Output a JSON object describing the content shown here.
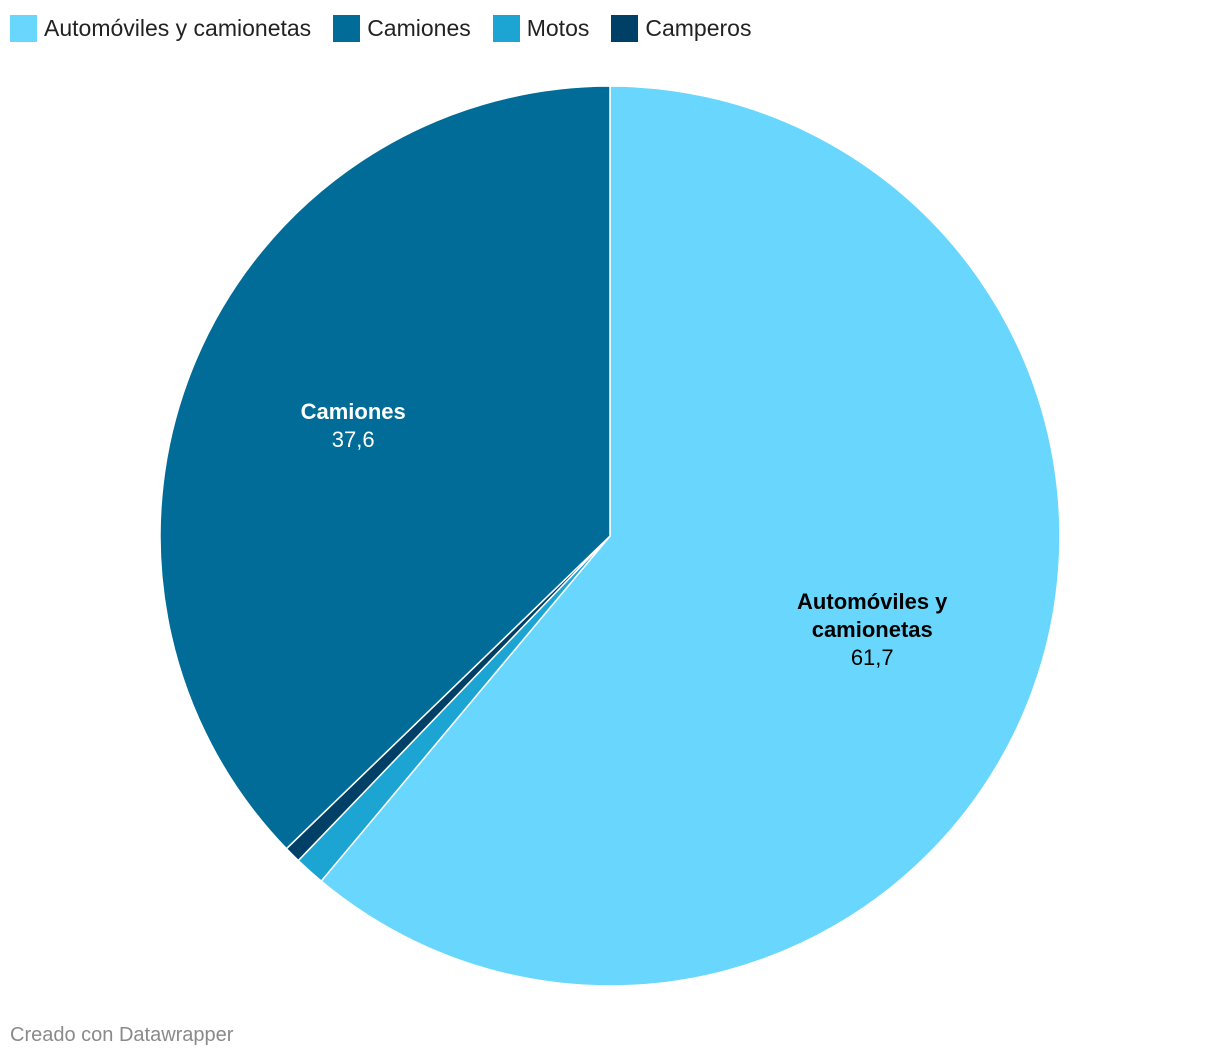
{
  "chart_data": {
    "type": "pie",
    "title": "",
    "slices": [
      {
        "label": "Automóviles y camionetas",
        "label_lines": [
          "Automóviles y",
          "camionetas"
        ],
        "value": 61.7,
        "value_label": "61,7",
        "color": "#69d7fd",
        "text_color": "#000000",
        "show_label": true
      },
      {
        "label": "Motos",
        "label_lines": [
          "Motos"
        ],
        "value": 1.1,
        "value_label": "",
        "color": "#1ca4d3",
        "text_color": "#ffffff",
        "show_label": false
      },
      {
        "label": "Camperos",
        "label_lines": [
          "Camperos"
        ],
        "value": 0.6,
        "value_label": "",
        "color": "#003f66",
        "text_color": "#ffffff",
        "show_label": false
      },
      {
        "label": "Camiones",
        "label_lines": [
          "Camiones"
        ],
        "value": 37.6,
        "value_label": "37,6",
        "color": "#006c97",
        "text_color": "#ffffff",
        "show_label": true
      }
    ],
    "legend": {
      "placement": "top-left",
      "items": [
        {
          "label": "Automóviles y camionetas",
          "color": "#69d7fd"
        },
        {
          "label": "Camiones",
          "color": "#006c97"
        },
        {
          "label": "Motos",
          "color": "#1ca4d3"
        },
        {
          "label": "Camperos",
          "color": "#003f66"
        }
      ]
    }
  },
  "footer": {
    "credit": "Creado con Datawrapper"
  }
}
